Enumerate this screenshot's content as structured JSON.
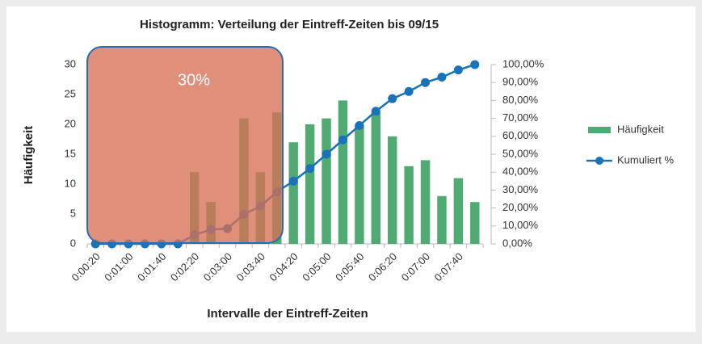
{
  "chart_data": {
    "type": "bar_line",
    "title": "Histogramm: Verteilung der Eintreff-Zeiten bis 09/15",
    "x_label": "Intervalle der Eintreff-Zeiten",
    "y_label": "Häufigkeit",
    "categories": [
      "0:00:20",
      null,
      "0:01:00",
      null,
      "0:01:40",
      null,
      "0:02:20",
      null,
      "0:03:00",
      null,
      "0:03:40",
      null,
      "0:04:20",
      null,
      "0:05:00",
      null,
      "0:05:40",
      null,
      "0:06:20",
      null,
      "0:07:00",
      null,
      "0:07:40",
      null
    ],
    "series": [
      {
        "name": "Häufigkeit",
        "type": "bar",
        "color": "#4fab73",
        "axis": "y",
        "values": [
          0,
          0,
          0,
          0,
          0,
          0,
          12,
          7,
          0,
          21,
          12,
          22,
          17,
          20,
          21,
          24,
          20,
          22,
          18,
          13,
          14,
          8,
          11,
          7
        ]
      },
      {
        "name": "Kumuliert %",
        "type": "line",
        "color": "#1a72b8",
        "axis": "y2",
        "values": [
          0,
          0,
          0,
          0,
          0,
          0,
          5,
          8,
          8.5,
          16.5,
          21,
          29,
          35,
          42,
          50,
          58,
          66,
          74,
          81,
          85,
          90,
          93,
          97,
          100
        ]
      }
    ],
    "ylim": [
      0,
      30
    ],
    "yticks": [
      0,
      5,
      10,
      15,
      20,
      25,
      30
    ],
    "y2lim": [
      0,
      100
    ],
    "y2ticks": [
      {
        "value": 0,
        "label": "0,00%"
      },
      {
        "value": 10,
        "label": "10,00%"
      },
      {
        "value": 20,
        "label": "20,00%"
      },
      {
        "value": 30,
        "label": "30,00%"
      },
      {
        "value": 40,
        "label": "40,00%"
      },
      {
        "value": 50,
        "label": "50,00%"
      },
      {
        "value": 60,
        "label": "60,00%"
      },
      {
        "value": 70,
        "label": "70,00%"
      },
      {
        "value": 80,
        "label": "80,00%"
      },
      {
        "value": 90,
        "label": "90,00%"
      },
      {
        "value": 100,
        "label": "100,00%"
      }
    ],
    "legend": "right",
    "grid": false,
    "annotation": "30%"
  }
}
